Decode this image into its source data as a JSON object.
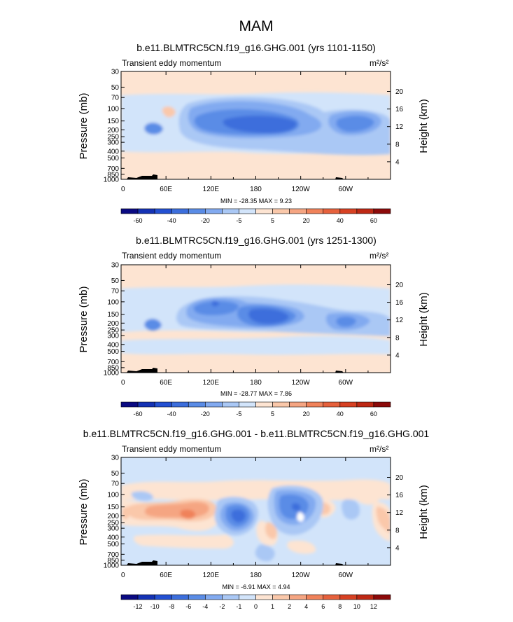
{
  "figure": {
    "title": "MAM"
  },
  "chart_data": [
    {
      "type": "heatmap",
      "title": "b.e11.BLMTRC5CN.f19_g16.GHG.001 (yrs 1101-1150)",
      "left_string": "Transient eddy momentum",
      "units": "m²/s²",
      "ylabel": "Pressure (mb)",
      "ylabel_right": "Height (km)",
      "x_ticks": [
        "0",
        "60E",
        "120E",
        "180",
        "120W",
        "60W"
      ],
      "y_ticks": [
        "30",
        "50",
        "70",
        "100",
        "150",
        "200",
        "250",
        "300",
        "400",
        "500",
        "700",
        "850",
        "1000"
      ],
      "y_ticks_right": [
        "20",
        "16",
        "12",
        "8",
        "4"
      ],
      "min_max": "MIN = -28.35  MAX =   9.23",
      "colorbar_labels": [
        "-60",
        "-40",
        "-20",
        "-5",
        "5",
        "20",
        "40",
        "60"
      ],
      "features": [
        {
          "lon": 180,
          "p": 175,
          "value": -28.35
        },
        {
          "lon": 125,
          "p": 150,
          "value": -20
        },
        {
          "lon": 285,
          "p": 170,
          "value": -20
        },
        {
          "lon": 28,
          "p": 190,
          "value": -20
        },
        {
          "lon": 95,
          "p": 110,
          "value": 5
        }
      ]
    },
    {
      "type": "heatmap",
      "title": "b.e11.BLMTRC5CN.f19_g16.GHG.001 (yrs 1251-1300)",
      "left_string": "Transient eddy momentum",
      "units": "m²/s²",
      "ylabel": "Pressure (mb)",
      "ylabel_right": "Height (km)",
      "x_ticks": [
        "0",
        "60E",
        "120E",
        "180",
        "120W",
        "60W"
      ],
      "y_ticks": [
        "30",
        "50",
        "70",
        "100",
        "150",
        "200",
        "250",
        "300",
        "400",
        "500",
        "700",
        "850",
        "1000"
      ],
      "y_ticks_right": [
        "20",
        "16",
        "12",
        "8",
        "4"
      ],
      "min_max": "MIN = -28.77  MAX =   7.86",
      "colorbar_labels": [
        "-60",
        "-40",
        "-20",
        "-5",
        "5",
        "20",
        "40",
        "60"
      ],
      "features": [
        {
          "lon": 185,
          "p": 175,
          "value": -28.77
        },
        {
          "lon": 125,
          "p": 100,
          "value": -20
        },
        {
          "lon": 290,
          "p": 190,
          "value": -20
        },
        {
          "lon": 28,
          "p": 190,
          "value": -20
        }
      ]
    },
    {
      "type": "heatmap",
      "title": "b.e11.BLMTRC5CN.f19_g16.GHG.001 - b.e11.BLMTRC5CN.f19_g16.GHG.001",
      "left_string": "Transient eddy momentum",
      "units": "m²/s²",
      "ylabel": "Pressure (mb)",
      "ylabel_right": "Height (km)",
      "x_ticks": [
        "0",
        "60E",
        "120E",
        "180",
        "120W",
        "60W"
      ],
      "y_ticks": [
        "30",
        "50",
        "70",
        "100",
        "150",
        "200",
        "250",
        "300",
        "400",
        "500",
        "700",
        "850",
        "1000"
      ],
      "y_ticks_right": [
        "20",
        "16",
        "12",
        "8",
        "4"
      ],
      "min_max": "MIN =  -6.91  MAX =   4.94",
      "colorbar_labels": [
        "-12",
        "-10",
        "-8",
        "-6",
        "-4",
        "-2",
        "-1",
        "0",
        "1",
        "2",
        "4",
        "6",
        "8",
        "10",
        "12"
      ],
      "features": [
        {
          "lon": 160,
          "p": 180,
          "value": -6.91
        },
        {
          "lon": 245,
          "p": 160,
          "value": -5
        },
        {
          "lon": 95,
          "p": 200,
          "value": 4.94
        },
        {
          "lon": 60,
          "p": 200,
          "value": 3
        },
        {
          "lon": 345,
          "p": 190,
          "value": 3
        },
        {
          "lon": 290,
          "p": 180,
          "value": -3
        }
      ]
    }
  ],
  "colors": {
    "colorbar": [
      "#0a0a82",
      "#1432b4",
      "#2350d2",
      "#3c6edc",
      "#5a8ce6",
      "#82aaf0",
      "#aac8f5",
      "#d2e4fa",
      "#fde4d2",
      "#fac8aa",
      "#f5a582",
      "#f0825a",
      "#e6613c",
      "#d74123",
      "#be2814",
      "#8c0a0a"
    ],
    "background_neutral": "#fde4d2",
    "land": "#000000"
  }
}
